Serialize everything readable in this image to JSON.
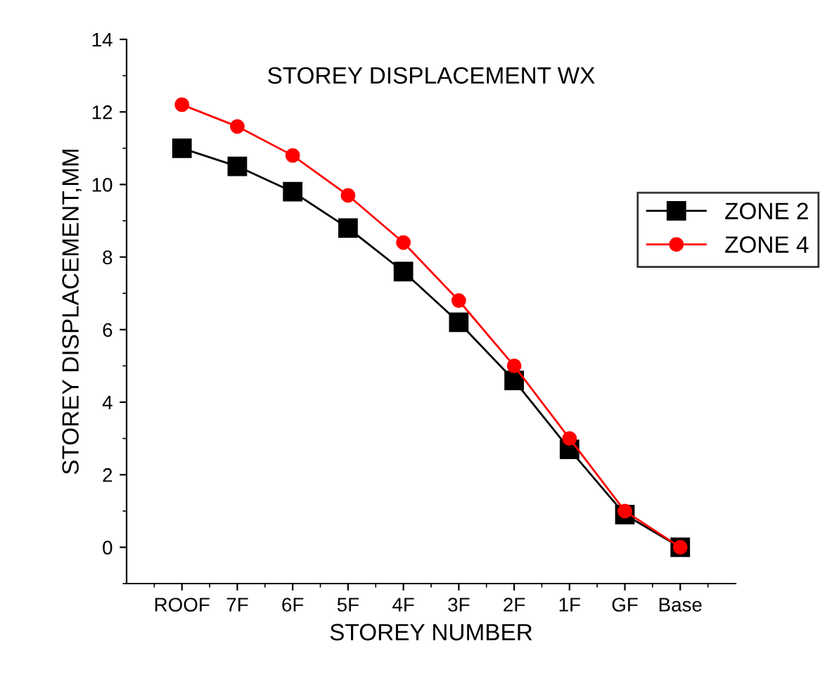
{
  "chart_data": {
    "type": "line",
    "title": "STOREY DISPLACEMENT WX",
    "xlabel": "STOREY NUMBER",
    "ylabel": "STOREY DISPLACEMENT,MM",
    "categories": [
      "ROOF",
      "7F",
      "6F",
      "5F",
      "4F",
      "3F",
      "2F",
      "1F",
      "GF",
      "Base"
    ],
    "series": [
      {
        "name": "ZONE 2",
        "color": "#000000",
        "marker": "square",
        "values": [
          11,
          10.5,
          9.8,
          8.8,
          7.6,
          6.2,
          4.6,
          2.7,
          0.9,
          0
        ]
      },
      {
        "name": "ZONE 4",
        "color": "#ff0000",
        "marker": "circle",
        "values": [
          12.2,
          11.6,
          10.8,
          9.7,
          8.4,
          6.8,
          5.0,
          3.0,
          1.0,
          0
        ]
      }
    ],
    "ylim": [
      -1,
      14
    ],
    "yticks": [
      0,
      2,
      4,
      6,
      8,
      10,
      12,
      14
    ],
    "grid": false,
    "legend": "right",
    "line_style": "solid"
  }
}
